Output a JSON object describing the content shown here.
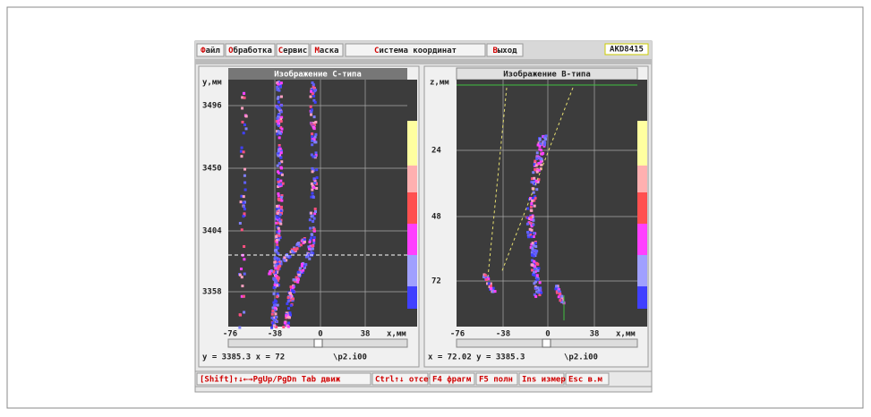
{
  "menu": [
    "Файл",
    "Обработка",
    "Сервис",
    "Маска",
    "Система координат",
    "Выход"
  ],
  "badge": "AKD8415",
  "panels": [
    {
      "title": "Изображение С-типа",
      "y_label": "y,мм",
      "yticks": [
        "3496",
        "3450",
        "3404",
        "3358"
      ],
      "xticks": [
        "-76",
        "-38",
        "0",
        "38"
      ],
      "x_label": "x,мм",
      "status": "y = 3385.3 x = 72",
      "file": "\\p2.i00"
    },
    {
      "title": "Изображение В-типа",
      "y_label": "z,мм",
      "yticks": [
        "24",
        "48",
        "72"
      ],
      "xticks": [
        "-76",
        "-38",
        "0",
        "38"
      ],
      "x_label": "x,мм",
      "status": "x = 72.02 y = 3385.3",
      "file": "\\p2.i00"
    }
  ],
  "hotkeys": [
    "[Shift]↑↓←→PgUp/PgDn Tab движ",
    "Ctrl↑↓ отсеч",
    "F4 фрагм",
    "F5 полн",
    "Ins измер",
    "Esc в.м"
  ]
}
